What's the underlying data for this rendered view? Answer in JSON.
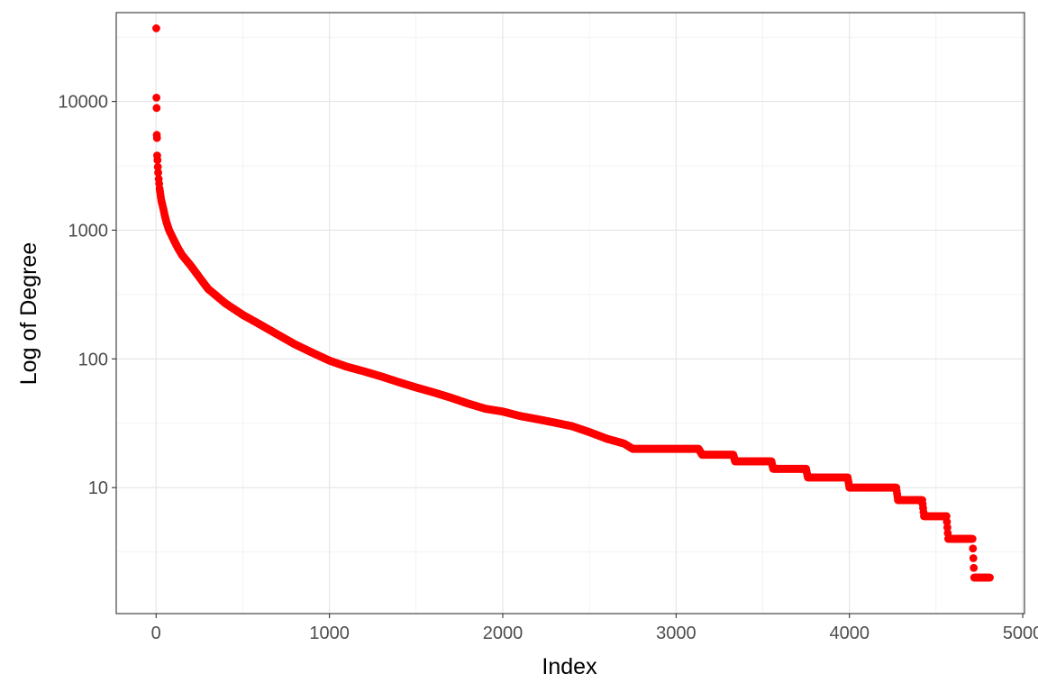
{
  "chart_data": {
    "type": "scatter",
    "title": "",
    "xlabel": "Index",
    "ylabel": "Log of Degree",
    "y_scale": "log10",
    "xlim": [
      -230,
      5010
    ],
    "ylim": [
      1.05,
      49000
    ],
    "x_ticks": [
      0,
      1000,
      2000,
      3000,
      4000,
      5000
    ],
    "x_tick_labels": [
      "0",
      "1000",
      "2000",
      "3000",
      "4000",
      "5000"
    ],
    "y_ticks": [
      10,
      100,
      1000,
      10000
    ],
    "y_tick_labels": [
      "10",
      "100",
      "1000",
      "10000"
    ],
    "grid": true,
    "legend": "none",
    "point_color": "#ff0000",
    "series": [
      {
        "points": [
          [
            1,
            37000
          ],
          [
            2,
            10700
          ],
          [
            3,
            8900
          ],
          [
            4,
            5500
          ],
          [
            5,
            5200
          ],
          [
            6,
            3800
          ],
          [
            8,
            3500
          ],
          [
            10,
            3100
          ],
          [
            12,
            2800
          ],
          [
            15,
            2500
          ],
          [
            20,
            2100
          ],
          [
            25,
            1900
          ],
          [
            30,
            1700
          ],
          [
            40,
            1500
          ],
          [
            50,
            1300
          ],
          [
            60,
            1150
          ],
          [
            75,
            1000
          ],
          [
            100,
            850
          ],
          [
            125,
            730
          ],
          [
            150,
            640
          ],
          [
            200,
            530
          ],
          [
            250,
            430
          ],
          [
            300,
            350
          ],
          [
            400,
            270
          ],
          [
            500,
            220
          ],
          [
            600,
            185
          ],
          [
            700,
            155
          ],
          [
            800,
            130
          ],
          [
            900,
            112
          ],
          [
            1000,
            97
          ],
          [
            1100,
            87
          ],
          [
            1200,
            80
          ],
          [
            1300,
            73
          ],
          [
            1400,
            66
          ],
          [
            1500,
            60
          ],
          [
            1600,
            55
          ],
          [
            1700,
            50
          ],
          [
            1800,
            45
          ],
          [
            1900,
            41
          ],
          [
            2000,
            39
          ],
          [
            2100,
            36
          ],
          [
            2200,
            34
          ],
          [
            2300,
            32
          ],
          [
            2400,
            30
          ],
          [
            2500,
            27
          ],
          [
            2600,
            24
          ],
          [
            2700,
            22
          ],
          [
            2750,
            20
          ],
          [
            3000,
            20
          ],
          [
            3130,
            20
          ],
          [
            3150,
            18
          ],
          [
            3330,
            18
          ],
          [
            3340,
            16
          ],
          [
            3550,
            16
          ],
          [
            3560,
            14
          ],
          [
            3750,
            14
          ],
          [
            3760,
            12
          ],
          [
            3990,
            12
          ],
          [
            4000,
            10
          ],
          [
            4270,
            10
          ],
          [
            4280,
            8
          ],
          [
            4420,
            8
          ],
          [
            4430,
            6
          ],
          [
            4560,
            6
          ],
          [
            4570,
            4
          ],
          [
            4710,
            4
          ],
          [
            4720,
            2
          ],
          [
            4810,
            2
          ]
        ]
      }
    ]
  }
}
